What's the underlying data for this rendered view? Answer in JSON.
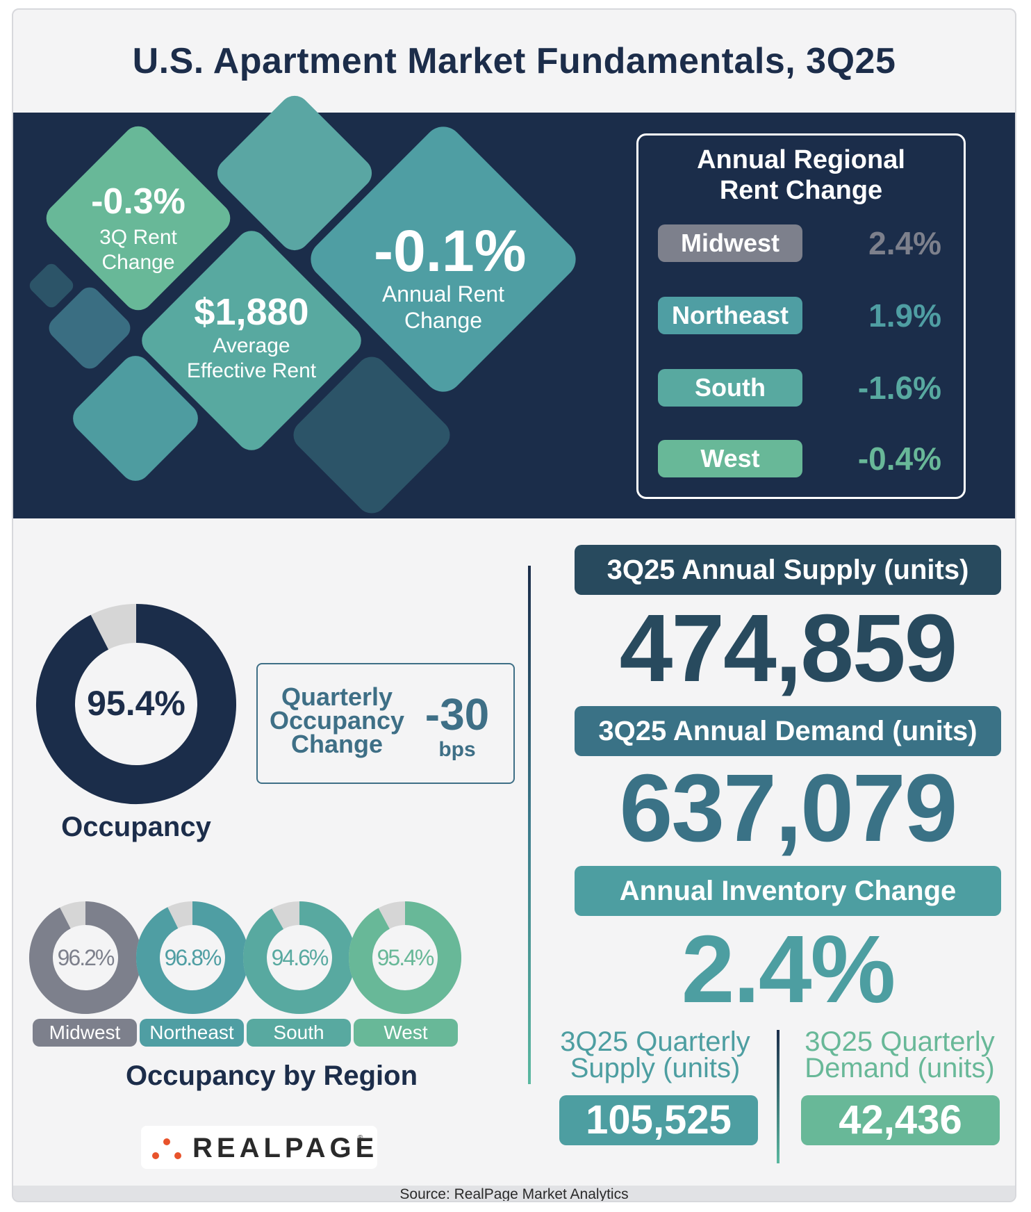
{
  "title": "U.S. Apartment Market Fundamentals, 3Q25",
  "colors": {
    "navy": "#1b2d4a",
    "gray": "#7d808c",
    "teal_dark": "#3d7b8c",
    "teal": "#4f9ea3",
    "teal_mid": "#58a9a0",
    "green": "#68b898",
    "light_gray": "#d6d6d6"
  },
  "headline": {
    "rent_3q": {
      "value": "-0.3%",
      "label_line1": "3Q Rent",
      "label_line2": "Change"
    },
    "avg_rent": {
      "value": "$1,880",
      "label_line1": "Average",
      "label_line2": "Effective Rent"
    },
    "rent_annual": {
      "value": "-0.1%",
      "label_line1": "Annual Rent",
      "label_line2": "Change"
    }
  },
  "regional_rent": {
    "title_line1": "Annual Regional",
    "title_line2": "Rent Change",
    "rows": [
      {
        "region": "Midwest",
        "value": "2.4%",
        "color": "#7d808c"
      },
      {
        "region": "Northeast",
        "value": "1.9%",
        "color": "#4f9ea3"
      },
      {
        "region": "South",
        "value": "-1.6%",
        "color": "#58a9a0"
      },
      {
        "region": "West",
        "value": "-0.4%",
        "color": "#68b898"
      }
    ]
  },
  "occupancy": {
    "value": "95.4%",
    "fraction": 0.954,
    "label": "Occupancy",
    "quarterly_change_label_line1": "Quarterly",
    "quarterly_change_label_line2": "Occupancy",
    "quarterly_change_label_line3": "Change",
    "quarterly_change_value": "-30",
    "quarterly_change_unit": "bps"
  },
  "chart_data": {
    "type": "donut",
    "title": "Occupancy by Region",
    "categories": [
      "Midwest",
      "Northeast",
      "South",
      "West"
    ],
    "values": [
      96.2,
      96.8,
      94.6,
      95.4
    ],
    "labels": [
      "96.2%",
      "96.8%",
      "94.6%",
      "95.4%"
    ],
    "colors": [
      "#7d808c",
      "#4f9ea3",
      "#58a9a0",
      "#68b898"
    ],
    "ylim": [
      0,
      100
    ]
  },
  "supply": {
    "annual_supply_label": "3Q25 Annual Supply (units)",
    "annual_supply_value": "474,859",
    "annual_demand_label": "3Q25 Annual Demand (units)",
    "annual_demand_value": "637,079",
    "inventory_change_label": "Annual Inventory Change",
    "inventory_change_value": "2.4%",
    "quarterly_supply_label_line1": "3Q25 Quarterly",
    "quarterly_supply_label_line2": "Supply (units)",
    "quarterly_supply_value": "105,525",
    "quarterly_demand_label_line1": "3Q25 Quarterly",
    "quarterly_demand_label_line2": "Demand (units)",
    "quarterly_demand_value": "42,436"
  },
  "logo": {
    "text": "REALPAGE",
    "tm": "®"
  },
  "source": "Source: RealPage Market Analytics"
}
